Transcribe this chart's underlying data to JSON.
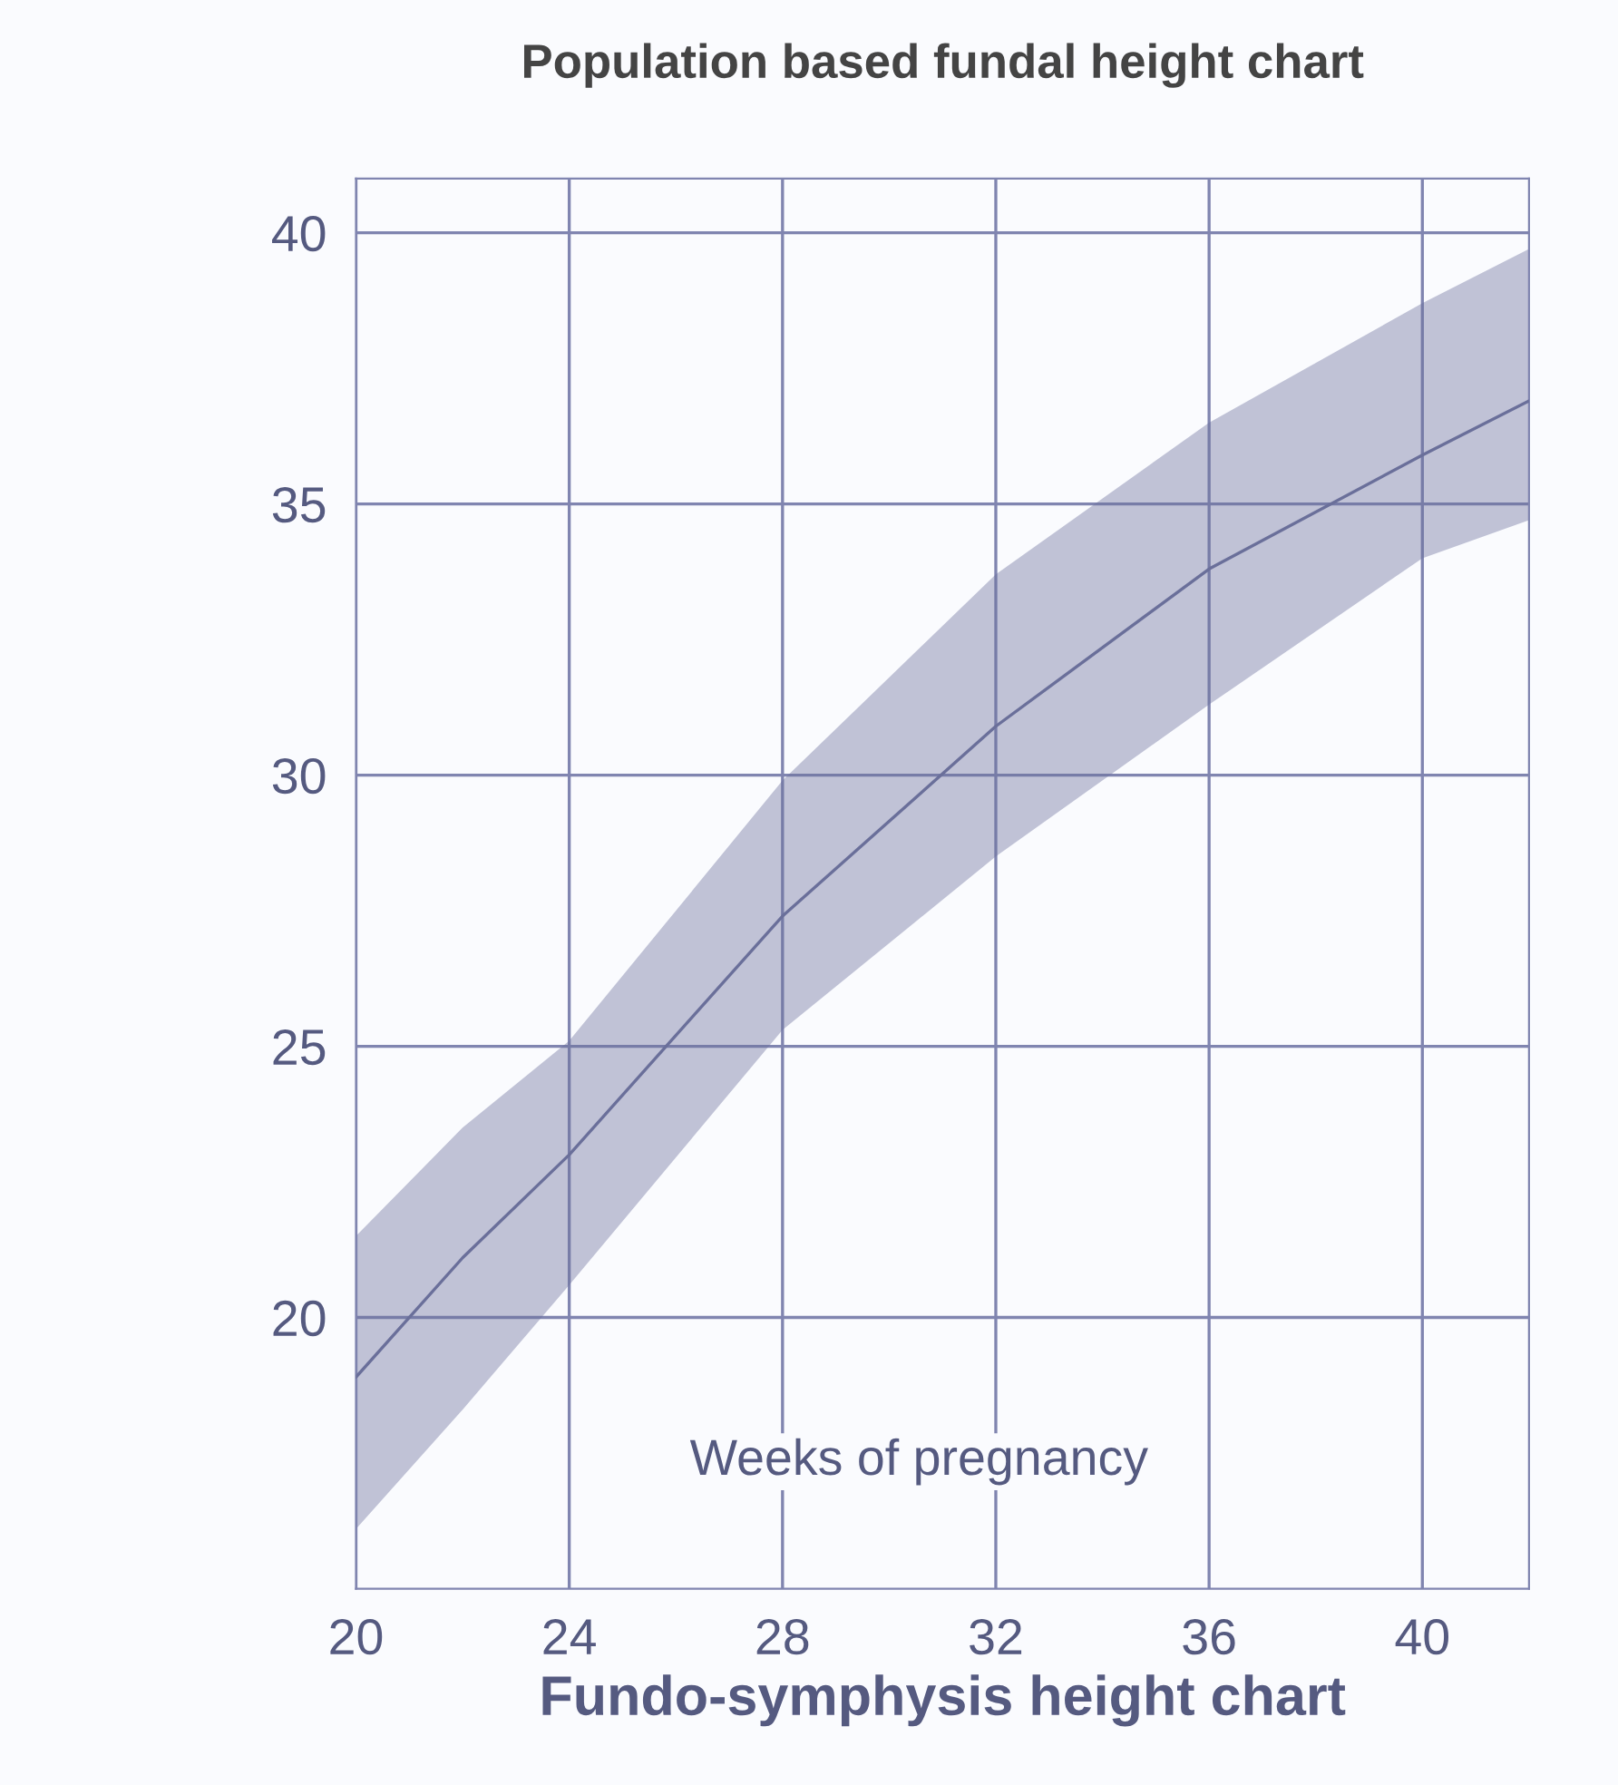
{
  "chart_data": {
    "type": "line",
    "title": "Population based fundal height chart",
    "xlabel": "Fundo-symphysis height chart",
    "annotations": [
      "Weeks of pregnancy"
    ],
    "x": [
      20,
      22,
      24,
      28,
      32,
      36,
      40,
      42
    ],
    "series": [
      {
        "color": "#6a6f9a",
        "values": [
          18.9,
          21.1,
          23.0,
          27.4,
          30.9,
          33.8,
          35.9,
          36.9
        ],
        "lower": [
          16.1,
          18.3,
          20.6,
          25.3,
          28.5,
          31.3,
          34.0,
          34.7
        ],
        "upper": [
          21.5,
          23.5,
          25.1,
          29.9,
          33.7,
          36.5,
          38.7,
          39.7
        ]
      }
    ],
    "xlim": [
      20,
      42
    ],
    "ylim": [
      15,
      41
    ],
    "xticks": [
      20,
      24,
      28,
      32,
      36,
      40
    ],
    "yticks": [
      20,
      25,
      30,
      35,
      40
    ],
    "grid": true,
    "line_style": "solid"
  }
}
